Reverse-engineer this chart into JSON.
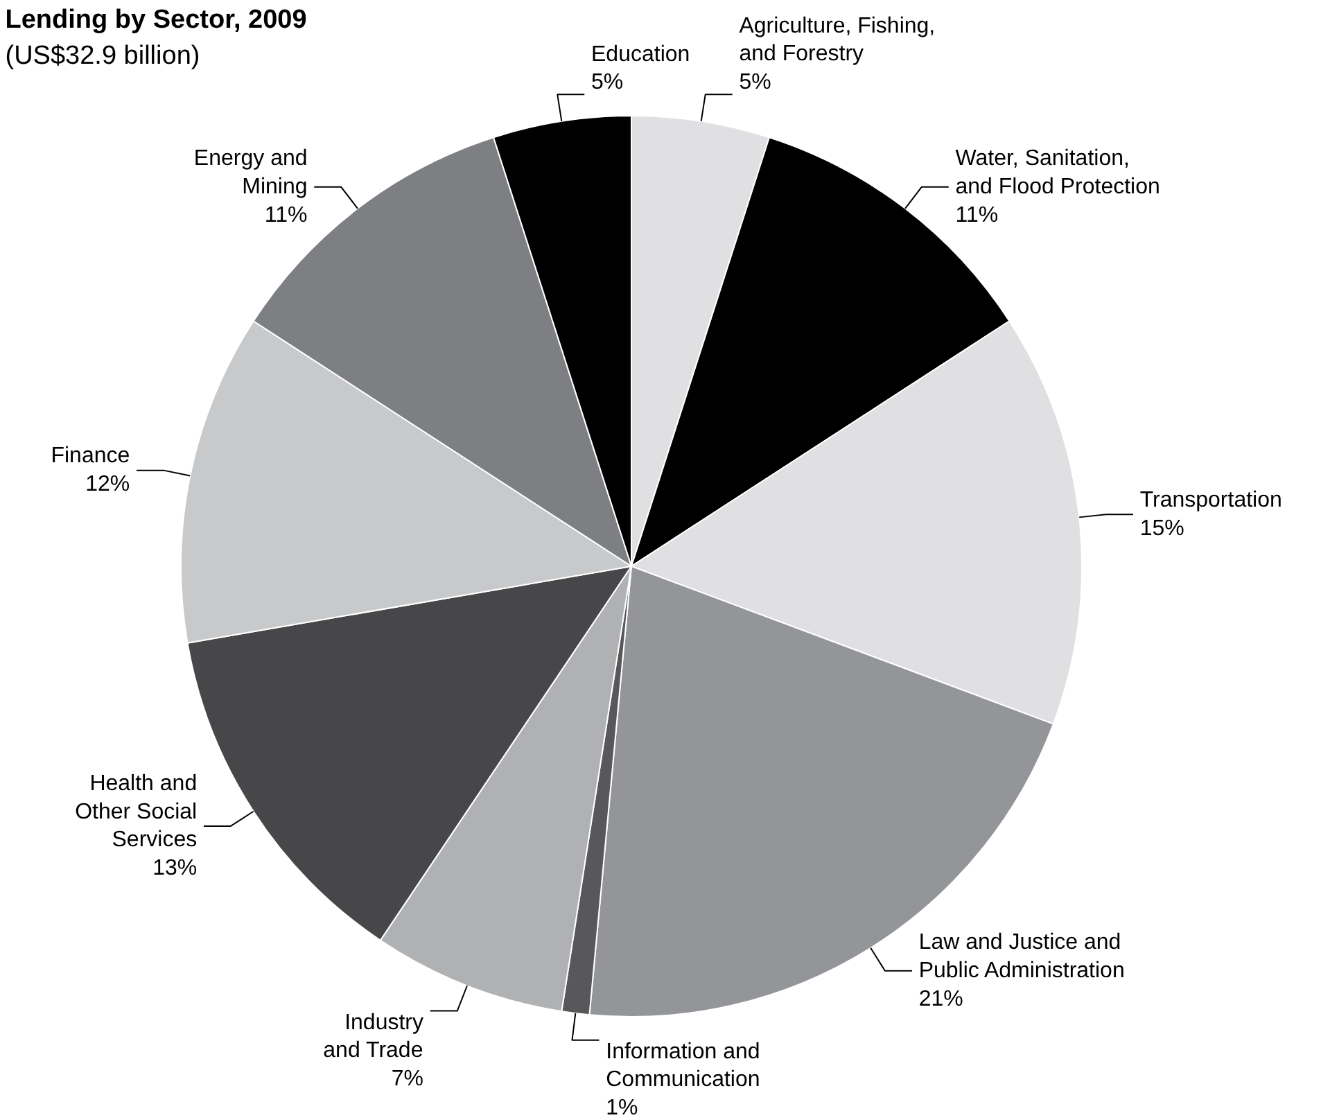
{
  "chart_data": {
    "type": "pie",
    "title": "Lending by Sector, 2009",
    "subtitle": "(US$32.9 billion)",
    "categories": [
      "Agriculture, Fishing,\nand Forestry",
      "Water, Sanitation,\nand Flood Protection",
      "Transportation",
      "Law and Justice and\nPublic Administration",
      "Information and\nCommunication",
      "Industry\nand Trade",
      "Health and\nOther Social\nServices",
      "Finance",
      "Energy and\nMining",
      "Education"
    ],
    "values": [
      5,
      11,
      15,
      21,
      1,
      7,
      13,
      12,
      11,
      5
    ],
    "value_labels": [
      "5%",
      "11%",
      "15%",
      "21%",
      "1%",
      "7%",
      "13%",
      "12%",
      "11%",
      "5%"
    ],
    "colors": [
      "#e0e0e2",
      "#000000",
      "#e0e0e2",
      "#949598",
      "#58585a",
      "#b0b1b3",
      "#474749",
      "#c8c9cb",
      "#7e7f82",
      "#000000"
    ],
    "legend": false
  }
}
